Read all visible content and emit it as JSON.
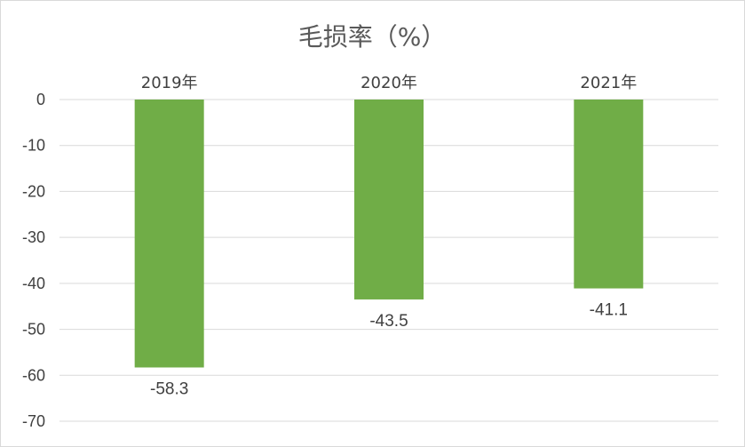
{
  "chart_data": {
    "type": "bar",
    "title": "毛损率（%）",
    "categories": [
      "2019年",
      "2020年",
      "2021年"
    ],
    "values": [
      -58.3,
      -43.5,
      -41.1
    ],
    "data_labels": [
      "-58.3",
      "-43.5",
      "-41.1"
    ],
    "ylim": [
      -70,
      0
    ],
    "yticks": [
      0,
      -10,
      -20,
      -30,
      -40,
      -50,
      -60,
      -70
    ],
    "category_axis_position": "top",
    "grid": true,
    "legend": "none",
    "bar_color": "#70AD47"
  }
}
